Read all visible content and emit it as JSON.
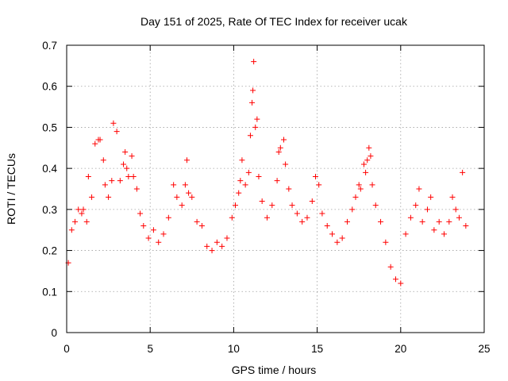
{
  "chart_data": {
    "type": "scatter",
    "title": "Day 151 of 2025, Rate Of TEC Index for receiver ucak",
    "xlabel": "GPS time / hours",
    "ylabel": "ROTI / TECUs",
    "xlim": [
      0,
      25
    ],
    "ylim": [
      0,
      0.7
    ],
    "xticks": [
      0,
      5,
      10,
      15,
      20,
      25
    ],
    "xtick_labels": [
      "0",
      "5",
      "10",
      "15",
      "20",
      "25"
    ],
    "yticks": [
      0,
      0.1,
      0.2,
      0.3,
      0.4,
      0.5,
      0.6,
      0.7
    ],
    "ytick_labels": [
      "0",
      "0.1",
      "0.2",
      "0.3",
      "0.4",
      "0.5",
      "0.6",
      "0.7"
    ],
    "grid": true,
    "marker": "+",
    "color": "#ff0000",
    "series": [
      {
        "name": "ROTI",
        "points": [
          [
            0.1,
            0.17
          ],
          [
            0.3,
            0.25
          ],
          [
            0.5,
            0.27
          ],
          [
            0.7,
            0.3
          ],
          [
            0.9,
            0.29
          ],
          [
            1.0,
            0.3
          ],
          [
            1.2,
            0.27
          ],
          [
            1.3,
            0.38
          ],
          [
            1.5,
            0.33
          ],
          [
            1.7,
            0.46
          ],
          [
            1.9,
            0.47
          ],
          [
            2.0,
            0.47
          ],
          [
            2.2,
            0.42
          ],
          [
            2.3,
            0.36
          ],
          [
            2.5,
            0.33
          ],
          [
            2.7,
            0.37
          ],
          [
            2.8,
            0.51
          ],
          [
            3.0,
            0.49
          ],
          [
            3.2,
            0.37
          ],
          [
            3.4,
            0.41
          ],
          [
            3.5,
            0.44
          ],
          [
            3.6,
            0.4
          ],
          [
            3.7,
            0.38
          ],
          [
            3.9,
            0.43
          ],
          [
            4.0,
            0.38
          ],
          [
            4.2,
            0.35
          ],
          [
            4.4,
            0.29
          ],
          [
            4.6,
            0.26
          ],
          [
            4.9,
            0.23
          ],
          [
            5.2,
            0.25
          ],
          [
            5.5,
            0.22
          ],
          [
            5.8,
            0.24
          ],
          [
            6.1,
            0.28
          ],
          [
            6.4,
            0.36
          ],
          [
            6.6,
            0.33
          ],
          [
            6.9,
            0.31
          ],
          [
            7.1,
            0.36
          ],
          [
            7.2,
            0.42
          ],
          [
            7.3,
            0.34
          ],
          [
            7.5,
            0.33
          ],
          [
            7.8,
            0.27
          ],
          [
            8.1,
            0.26
          ],
          [
            8.4,
            0.21
          ],
          [
            8.7,
            0.2
          ],
          [
            9.0,
            0.22
          ],
          [
            9.3,
            0.21
          ],
          [
            9.6,
            0.23
          ],
          [
            9.9,
            0.28
          ],
          [
            10.1,
            0.31
          ],
          [
            10.3,
            0.34
          ],
          [
            10.4,
            0.37
          ],
          [
            10.5,
            0.42
          ],
          [
            10.7,
            0.36
          ],
          [
            10.9,
            0.39
          ],
          [
            11.0,
            0.48
          ],
          [
            11.1,
            0.56
          ],
          [
            11.15,
            0.59
          ],
          [
            11.2,
            0.66
          ],
          [
            11.3,
            0.5
          ],
          [
            11.4,
            0.52
          ],
          [
            11.5,
            0.38
          ],
          [
            11.7,
            0.32
          ],
          [
            12.0,
            0.28
          ],
          [
            12.3,
            0.31
          ],
          [
            12.6,
            0.37
          ],
          [
            12.7,
            0.44
          ],
          [
            12.8,
            0.45
          ],
          [
            13.0,
            0.47
          ],
          [
            13.1,
            0.41
          ],
          [
            13.3,
            0.35
          ],
          [
            13.5,
            0.31
          ],
          [
            13.8,
            0.29
          ],
          [
            14.1,
            0.27
          ],
          [
            14.4,
            0.28
          ],
          [
            14.7,
            0.32
          ],
          [
            14.9,
            0.38
          ],
          [
            15.1,
            0.36
          ],
          [
            15.3,
            0.29
          ],
          [
            15.6,
            0.26
          ],
          [
            15.9,
            0.24
          ],
          [
            16.2,
            0.22
          ],
          [
            16.5,
            0.23
          ],
          [
            16.8,
            0.27
          ],
          [
            17.1,
            0.3
          ],
          [
            17.3,
            0.33
          ],
          [
            17.5,
            0.36
          ],
          [
            17.6,
            0.35
          ],
          [
            17.8,
            0.41
          ],
          [
            17.9,
            0.39
          ],
          [
            18.0,
            0.42
          ],
          [
            18.1,
            0.45
          ],
          [
            18.2,
            0.43
          ],
          [
            18.3,
            0.36
          ],
          [
            18.5,
            0.31
          ],
          [
            18.8,
            0.27
          ],
          [
            19.1,
            0.22
          ],
          [
            19.4,
            0.16
          ],
          [
            19.7,
            0.13
          ],
          [
            20.0,
            0.12
          ],
          [
            20.3,
            0.24
          ],
          [
            20.6,
            0.28
          ],
          [
            20.9,
            0.31
          ],
          [
            21.1,
            0.35
          ],
          [
            21.3,
            0.27
          ],
          [
            21.6,
            0.3
          ],
          [
            21.8,
            0.33
          ],
          [
            22.0,
            0.25
          ],
          [
            22.3,
            0.27
          ],
          [
            22.6,
            0.24
          ],
          [
            22.9,
            0.27
          ],
          [
            23.1,
            0.33
          ],
          [
            23.3,
            0.3
          ],
          [
            23.5,
            0.28
          ],
          [
            23.7,
            0.39
          ],
          [
            23.9,
            0.26
          ]
        ]
      }
    ]
  }
}
